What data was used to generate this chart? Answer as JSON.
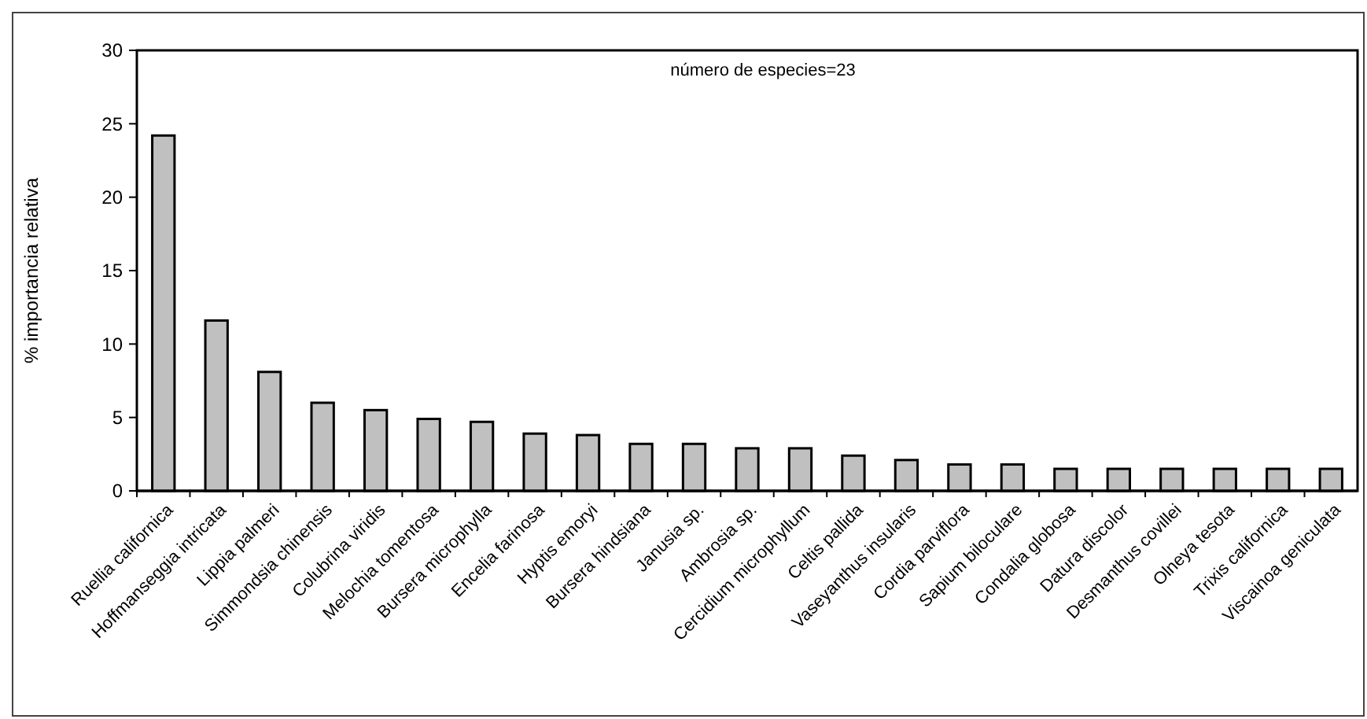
{
  "chart_data": {
    "type": "bar",
    "ylabel": "% importancia relativa",
    "annotations": [
      "número de especies=23"
    ],
    "categories": [
      "Ruellia californica",
      "Hoffmanseggia intricata",
      "Lippia palmeri",
      "Simmondsia chinensis",
      "Colubrina viridis",
      "Melochia tomentosa",
      "Bursera microphylla",
      "Encelia farinosa",
      "Hyptis emoryi",
      "Bursera hindsiana",
      "Janusia sp.",
      "Ambrosia sp.",
      "Cercidium microphyllum",
      "Celtis pallida",
      "Vaseyanthus insularis",
      "Cordia parviflora",
      "Sapium biloculare",
      "Condalia globosa",
      "Datura discolor",
      "Desmanthus covillei",
      "Olneya tesota",
      "Trixis californica",
      "Viscainoa geniculata"
    ],
    "values": [
      24.2,
      11.6,
      8.1,
      6.0,
      5.5,
      4.9,
      4.7,
      3.9,
      3.8,
      3.2,
      3.2,
      2.9,
      2.9,
      2.4,
      2.1,
      1.8,
      1.8,
      1.5,
      1.5,
      1.5,
      1.5,
      1.5,
      1.5
    ],
    "color": "#c0c0c0",
    "ylim": [
      0,
      30
    ],
    "yticks": [
      0,
      5,
      10,
      15,
      20,
      25,
      30
    ],
    "grid": false
  }
}
